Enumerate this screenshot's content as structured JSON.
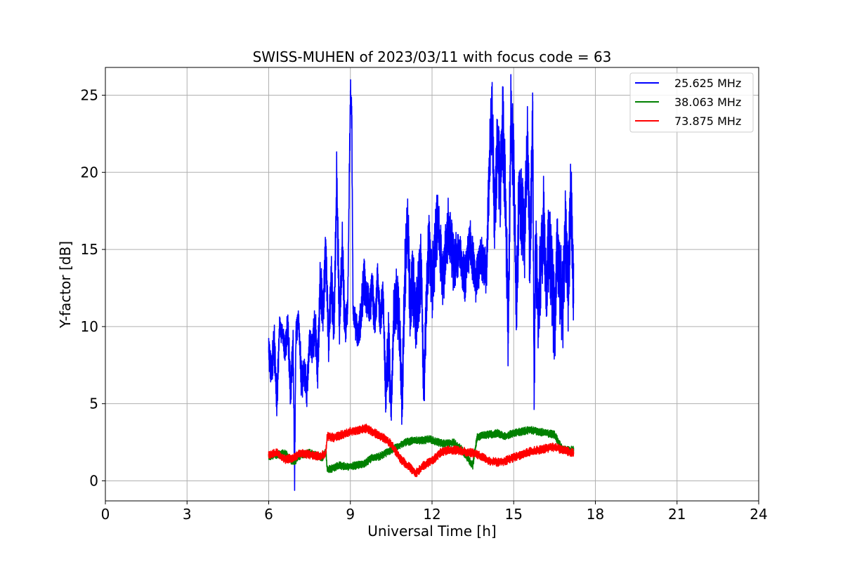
{
  "chart_data": {
    "type": "line",
    "title": "SWISS-MUHEN of 2023/03/11 with focus code = 63",
    "xlabel": "Universal Time [h]",
    "ylabel": "Y-factor [dB]",
    "xlim": [
      0,
      24
    ],
    "ylim": [
      -1.3,
      26.8
    ],
    "xticks": [
      0,
      3,
      6,
      9,
      12,
      15,
      18,
      21,
      24
    ],
    "yticks": [
      0,
      5,
      10,
      15,
      20,
      25
    ],
    "grid": true,
    "legend_position": "top-right",
    "series": [
      {
        "name": "25.625 MHz",
        "color": "#0000ff",
        "x": [
          6.0,
          6.1,
          6.2,
          6.3,
          6.4,
          6.5,
          6.6,
          6.7,
          6.8,
          6.9,
          6.95,
          7.0,
          7.1,
          7.2,
          7.3,
          7.4,
          7.5,
          7.6,
          7.7,
          7.8,
          7.9,
          8.0,
          8.1,
          8.2,
          8.3,
          8.4,
          8.5,
          8.6,
          8.7,
          8.8,
          8.9,
          9.0,
          9.05,
          9.1,
          9.2,
          9.3,
          9.4,
          9.5,
          9.6,
          9.7,
          9.8,
          9.9,
          10.0,
          10.1,
          10.2,
          10.3,
          10.4,
          10.5,
          10.6,
          10.7,
          10.8,
          10.9,
          11.0,
          11.1,
          11.2,
          11.3,
          11.4,
          11.5,
          11.6,
          11.7,
          11.8,
          11.9,
          12.0,
          12.2,
          12.4,
          12.6,
          12.8,
          13.0,
          13.2,
          13.4,
          13.6,
          13.8,
          14.0,
          14.1,
          14.2,
          14.3,
          14.4,
          14.5,
          14.6,
          14.7,
          14.8,
          14.9,
          15.0,
          15.1,
          15.2,
          15.3,
          15.4,
          15.5,
          15.6,
          15.7,
          15.75,
          15.8,
          15.9,
          16.0,
          16.1,
          16.2,
          16.3,
          16.4,
          16.5,
          16.6,
          16.7,
          16.8,
          16.9,
          17.0,
          17.1,
          17.2
        ],
        "y": [
          8.5,
          7.0,
          9.0,
          5.0,
          10.0,
          9.5,
          8.5,
          10.0,
          6.0,
          9.0,
          0.0,
          9.5,
          10.5,
          6.5,
          7.0,
          6.0,
          9.0,
          8.5,
          10.0,
          7.5,
          13.0,
          11.0,
          15.0,
          9.0,
          13.0,
          10.0,
          19.5,
          10.0,
          15.0,
          10.0,
          11.0,
          25.0,
          24.0,
          11.0,
          10.0,
          9.5,
          11.0,
          13.0,
          12.0,
          11.0,
          12.5,
          10.0,
          13.0,
          10.5,
          12.0,
          5.5,
          9.0,
          4.5,
          11.0,
          12.0,
          10.0,
          5.0,
          13.0,
          17.0,
          11.0,
          13.0,
          10.0,
          12.0,
          14.0,
          6.0,
          12.0,
          16.0,
          12.5,
          17.0,
          13.0,
          16.5,
          14.0,
          15.0,
          13.0,
          15.5,
          13.0,
          14.5,
          13.5,
          20.0,
          24.0,
          17.0,
          22.5,
          19.0,
          23.0,
          18.0,
          9.5,
          24.0,
          20.0,
          11.0,
          19.0,
          17.0,
          16.0,
          22.0,
          14.0,
          24.0,
          5.0,
          15.0,
          11.0,
          14.0,
          17.0,
          12.0,
          16.0,
          13.0,
          10.0,
          15.0,
          13.0,
          11.0,
          16.0,
          12.0,
          19.0,
          12.0
        ],
        "band_halfwidth": [
          1.0,
          1.2,
          1.5,
          1.5,
          0.8,
          0.8,
          1.0,
          1.2,
          1.5,
          1.5,
          1.0,
          1.0,
          0.8,
          1.5,
          1.2,
          1.2,
          1.0,
          1.2,
          1.5,
          1.5,
          2.0,
          1.5,
          2.0,
          1.5,
          2.0,
          1.5,
          2.5,
          1.5,
          2.0,
          1.5,
          1.0,
          1.5,
          1.5,
          1.0,
          1.0,
          1.0,
          1.5,
          1.5,
          1.5,
          1.2,
          1.5,
          1.2,
          1.5,
          1.2,
          1.5,
          1.5,
          2.5,
          1.5,
          2.0,
          2.0,
          2.0,
          2.0,
          2.5,
          2.5,
          2.5,
          2.5,
          2.5,
          2.5,
          2.5,
          2.5,
          2.5,
          2.5,
          2.5,
          2.5,
          2.0,
          2.0,
          2.0,
          1.5,
          1.5,
          1.5,
          1.5,
          1.5,
          1.5,
          2.5,
          2.5,
          3.0,
          3.0,
          3.0,
          3.0,
          3.0,
          3.0,
          3.0,
          3.0,
          3.0,
          3.0,
          3.0,
          3.0,
          3.0,
          3.0,
          3.0,
          2.0,
          3.0,
          3.0,
          3.0,
          3.0,
          3.0,
          3.0,
          3.0,
          3.0,
          3.0,
          3.0,
          3.0,
          3.0,
          3.0,
          3.0,
          2.5
        ]
      },
      {
        "name": "38.063 MHz",
        "color": "#008000",
        "x": [
          6.0,
          6.3,
          6.6,
          6.9,
          7.2,
          7.5,
          7.8,
          8.0,
          8.1,
          8.15,
          8.3,
          8.6,
          8.9,
          9.2,
          9.5,
          9.8,
          10.1,
          10.4,
          10.7,
          11.0,
          11.3,
          11.6,
          11.9,
          12.2,
          12.5,
          12.8,
          13.1,
          13.3,
          13.5,
          13.65,
          13.8,
          14.1,
          14.4,
          14.7,
          15.0,
          15.3,
          15.6,
          15.9,
          16.2,
          16.5,
          16.8,
          17.2
        ],
        "y": [
          1.6,
          1.7,
          1.8,
          1.2,
          1.7,
          1.8,
          1.6,
          1.5,
          2.0,
          0.7,
          0.8,
          1.0,
          0.9,
          1.0,
          1.1,
          1.5,
          1.6,
          1.9,
          2.2,
          2.5,
          2.6,
          2.6,
          2.7,
          2.5,
          2.4,
          2.5,
          2.0,
          1.5,
          1.0,
          2.8,
          2.9,
          3.0,
          3.1,
          2.9,
          3.1,
          3.2,
          3.3,
          3.2,
          3.1,
          3.0,
          2.0,
          2.0
        ],
        "band_halfwidth": 0.25
      },
      {
        "name": "73.875 MHz",
        "color": "#ff0000",
        "x": [
          6.0,
          6.3,
          6.6,
          6.9,
          7.2,
          7.5,
          7.8,
          8.0,
          8.1,
          8.15,
          8.4,
          8.7,
          9.0,
          9.3,
          9.6,
          9.9,
          10.2,
          10.5,
          10.8,
          11.1,
          11.4,
          11.7,
          12.0,
          12.3,
          12.6,
          12.9,
          13.2,
          13.5,
          13.8,
          14.1,
          14.4,
          14.7,
          15.0,
          15.3,
          15.6,
          15.9,
          16.2,
          16.5,
          16.8,
          17.2
        ],
        "y": [
          1.7,
          1.8,
          1.4,
          1.5,
          1.8,
          1.7,
          1.6,
          1.7,
          1.8,
          2.9,
          2.8,
          3.0,
          3.2,
          3.3,
          3.4,
          3.1,
          2.8,
          2.4,
          1.5,
          1.0,
          0.5,
          1.0,
          1.3,
          1.8,
          2.0,
          2.0,
          1.9,
          1.8,
          1.6,
          1.3,
          1.2,
          1.3,
          1.5,
          1.7,
          1.9,
          2.0,
          2.1,
          2.2,
          2.0,
          1.8
        ],
        "band_halfwidth": 0.28
      }
    ]
  }
}
